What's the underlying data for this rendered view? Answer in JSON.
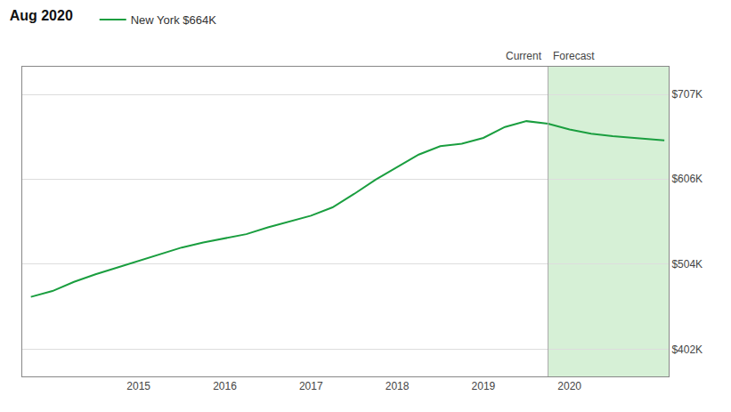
{
  "chart_data": {
    "type": "line",
    "title": "Aug 2020",
    "annotations": [
      "Current",
      "Forecast"
    ],
    "forecast_start": 2019.75,
    "xlim": [
      2013.65,
      2021.15
    ],
    "xticks": [
      2015,
      2016,
      2017,
      2018,
      2019,
      2020
    ],
    "ylim": [
      370000,
      740000
    ],
    "yticks": [
      {
        "value": 402000,
        "label": "$402K"
      },
      {
        "value": 504000,
        "label": "$504K"
      },
      {
        "value": 606000,
        "label": "$606K"
      },
      {
        "value": 707000,
        "label": "$707K"
      }
    ],
    "grid": "y",
    "series": [
      {
        "name": "New York $664K",
        "color": "#1a9e3f",
        "x": [
          2013.75,
          2014.0,
          2014.25,
          2014.5,
          2014.75,
          2015.0,
          2015.25,
          2015.5,
          2015.75,
          2016.0,
          2016.25,
          2016.5,
          2016.75,
          2017.0,
          2017.25,
          2017.5,
          2017.75,
          2018.0,
          2018.25,
          2018.5,
          2018.75,
          2019.0,
          2019.25,
          2019.5,
          2019.75
        ],
        "values": [
          465000,
          472000,
          483000,
          492000,
          500000,
          508000,
          516000,
          524000,
          530000,
          535000,
          540000,
          548000,
          555000,
          562000,
          572000,
          588000,
          605000,
          620000,
          635000,
          645000,
          648000,
          655000,
          668000,
          675000,
          672000
        ]
      },
      {
        "name": "New York $664K",
        "color": "#1a9e3f",
        "x": [
          2019.75,
          2020.0,
          2020.25,
          2020.5,
          2020.75,
          2021.0,
          2021.1
        ],
        "values": [
          672000,
          665000,
          660000,
          657000,
          655000,
          653000,
          652000
        ]
      }
    ]
  }
}
